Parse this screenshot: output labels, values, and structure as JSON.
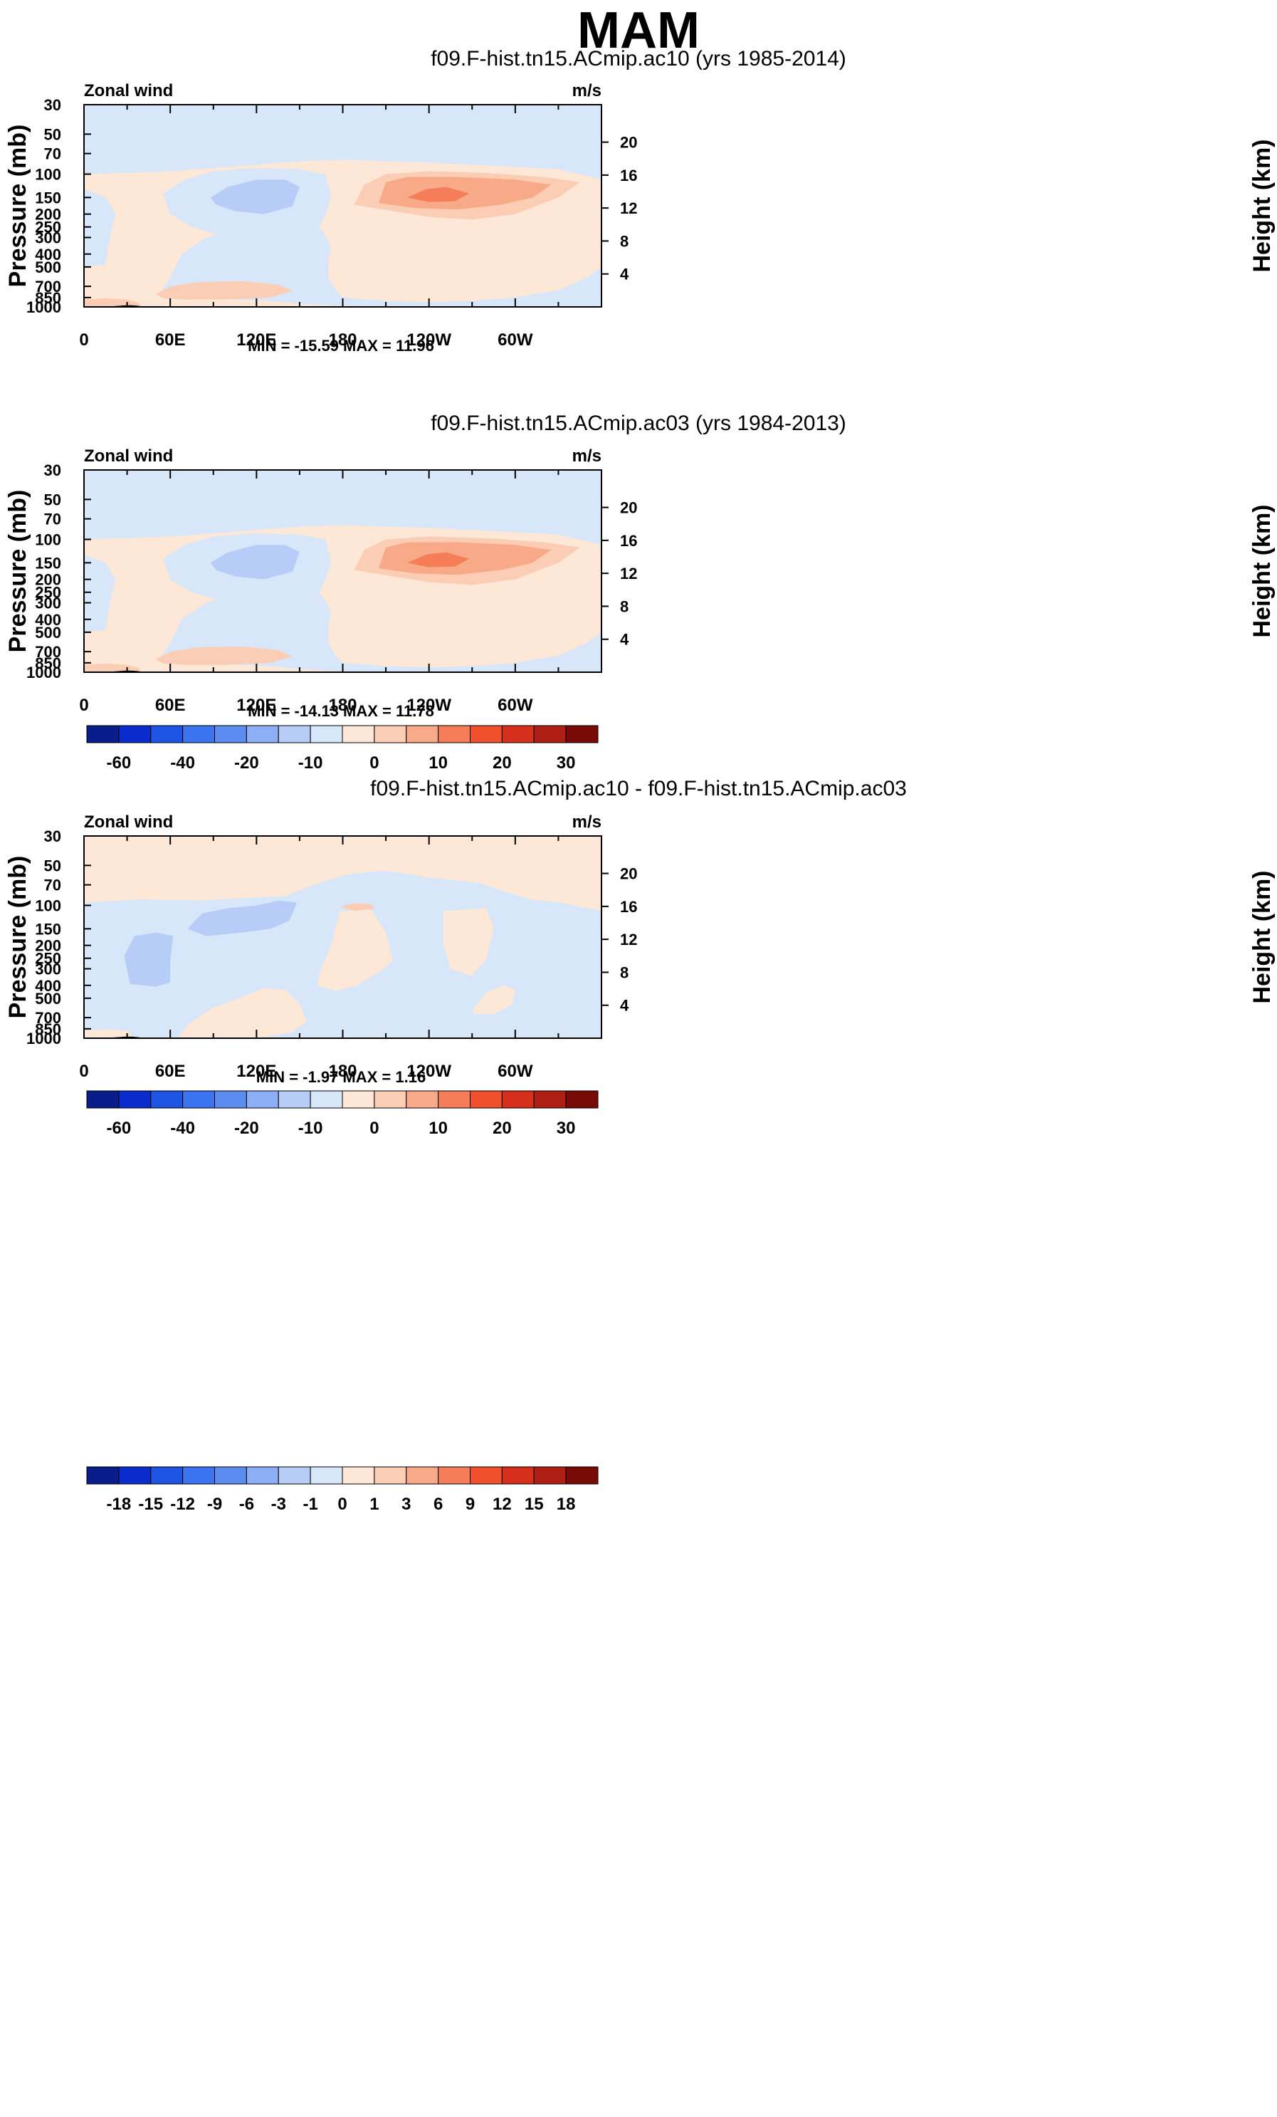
{
  "suptitle": "MAM",
  "colors": {
    "fill_levels": [
      "#081d8a",
      "#0a2ccc",
      "#1e54e6",
      "#3a74ef",
      "#5c8cf0",
      "#8eaef5",
      "#b7cdf8",
      "#d8e6fa",
      "#fde7d6",
      "#fbcdb4",
      "#f8a987",
      "#f57d58",
      "#f1502c",
      "#d5301c",
      "#ae1e12",
      "#7a0a06"
    ],
    "terrain": "#000000"
  },
  "chart_data": [
    {
      "type": "contour",
      "title": "f09.F-hist.tn15.ACmip.ac10 (yrs 1985-2014)",
      "left_label": "Zonal wind",
      "right_label": "m/s",
      "ylabel": "Pressure (mb)",
      "ylabel_right": "Height (km)",
      "xticks": [
        "0",
        "60E",
        "120E",
        "180",
        "120W",
        "60W"
      ],
      "xtick_lon": [
        0,
        60,
        120,
        180,
        240,
        300
      ],
      "xlim": [
        0,
        360
      ],
      "pressure_ticks": [
        "30",
        "50",
        "70",
        "100",
        "150",
        "200",
        "250",
        "300",
        "400",
        "500",
        "700",
        "850",
        "1000"
      ],
      "ylim_mb": [
        1000,
        30
      ],
      "height_ticks": [
        "20",
        "16",
        "12",
        "8",
        "4"
      ],
      "stats": "MIN = -15.59  MAX =  11.96",
      "colorbar_labels": [
        "-60",
        "-40",
        "-20",
        "-10",
        "0",
        "10",
        "20",
        "30"
      ],
      "contour_levels": [
        -70,
        -60,
        -50,
        -40,
        -30,
        -20,
        -15,
        -10,
        -5,
        0,
        5,
        10,
        15,
        20,
        25,
        30,
        35
      ]
    },
    {
      "type": "contour",
      "title": "f09.F-hist.tn15.ACmip.ac03 (yrs 1984-2013)",
      "left_label": "Zonal wind",
      "right_label": "m/s",
      "ylabel": "Pressure (mb)",
      "ylabel_right": "Height (km)",
      "xticks": [
        "0",
        "60E",
        "120E",
        "180",
        "120W",
        "60W"
      ],
      "xtick_lon": [
        0,
        60,
        120,
        180,
        240,
        300
      ],
      "xlim": [
        0,
        360
      ],
      "pressure_ticks": [
        "30",
        "50",
        "70",
        "100",
        "150",
        "200",
        "250",
        "300",
        "400",
        "500",
        "700",
        "850",
        "1000"
      ],
      "ylim_mb": [
        1000,
        30
      ],
      "height_ticks": [
        "20",
        "16",
        "12",
        "8",
        "4"
      ],
      "stats": "MIN = -14.13  MAX =  11.78",
      "colorbar_labels": [
        "-60",
        "-40",
        "-20",
        "-10",
        "0",
        "10",
        "20",
        "30"
      ],
      "contour_levels": [
        -70,
        -60,
        -50,
        -40,
        -30,
        -20,
        -15,
        -10,
        -5,
        0,
        5,
        10,
        15,
        20,
        25,
        30,
        35
      ]
    },
    {
      "type": "contour",
      "title": "f09.F-hist.tn15.ACmip.ac10 - f09.F-hist.tn15.ACmip.ac03",
      "left_label": "Zonal wind",
      "right_label": "m/s",
      "ylabel": "Pressure (mb)",
      "ylabel_right": "Height (km)",
      "xticks": [
        "0",
        "60E",
        "120E",
        "180",
        "120W",
        "60W"
      ],
      "xtick_lon": [
        0,
        60,
        120,
        180,
        240,
        300
      ],
      "xlim": [
        0,
        360
      ],
      "pressure_ticks": [
        "30",
        "50",
        "70",
        "100",
        "150",
        "200",
        "250",
        "300",
        "400",
        "500",
        "700",
        "850",
        "1000"
      ],
      "ylim_mb": [
        1000,
        30
      ],
      "height_ticks": [
        "20",
        "16",
        "12",
        "8",
        "4"
      ],
      "stats": "MIN = -1.97  MAX =  1.16",
      "colorbar_labels": [
        "-18",
        "-15",
        "-12",
        "-9",
        "-6",
        "-3",
        "-1",
        "0",
        "1",
        "3",
        "6",
        "9",
        "12",
        "15",
        "18"
      ],
      "contour_levels": [
        -21,
        -18,
        -15,
        -12,
        -9,
        -6,
        -3,
        -1,
        0,
        1,
        3,
        6,
        9,
        12,
        15,
        18,
        21
      ]
    }
  ]
}
